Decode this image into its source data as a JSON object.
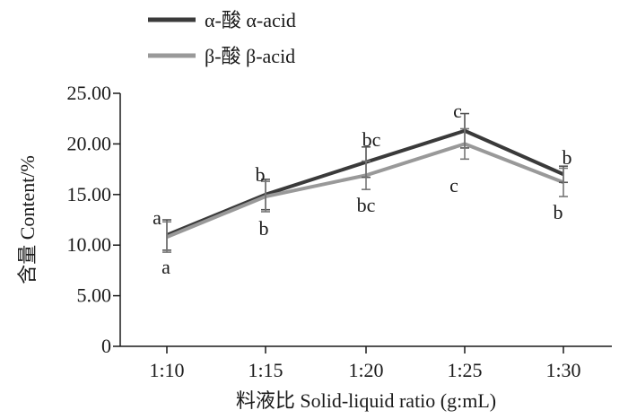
{
  "chart_data": {
    "type": "line",
    "categories": [
      "1:10",
      "1:15",
      "1:20",
      "1:25",
      "1:30"
    ],
    "series": [
      {
        "name": "α-酸 α-acid",
        "color": "#3a3a3a",
        "values": [
          11.0,
          15.0,
          18.2,
          21.3,
          17.0
        ],
        "error": [
          1.5,
          1.5,
          1.5,
          1.7,
          0.8
        ],
        "letters": [
          "a",
          "b",
          "bc",
          "c",
          "b"
        ]
      },
      {
        "name": "β-酸 β-acid",
        "color": "#999999",
        "values": [
          10.8,
          14.8,
          16.9,
          20.0,
          16.2
        ],
        "error": [
          1.5,
          1.5,
          1.4,
          1.5,
          1.4
        ],
        "letters": [
          "a",
          "b",
          "bc",
          "c",
          "b"
        ]
      }
    ],
    "xlabel": "料液比  Solid-liquid ratio (g:mL)",
    "ylabel": "含量 Content/%",
    "ylim": [
      0,
      25
    ],
    "yticks": [
      "0",
      "5.00",
      "10.00",
      "15.00",
      "20.00",
      "25.00"
    ],
    "grid": false,
    "legend_position": "top-left"
  }
}
